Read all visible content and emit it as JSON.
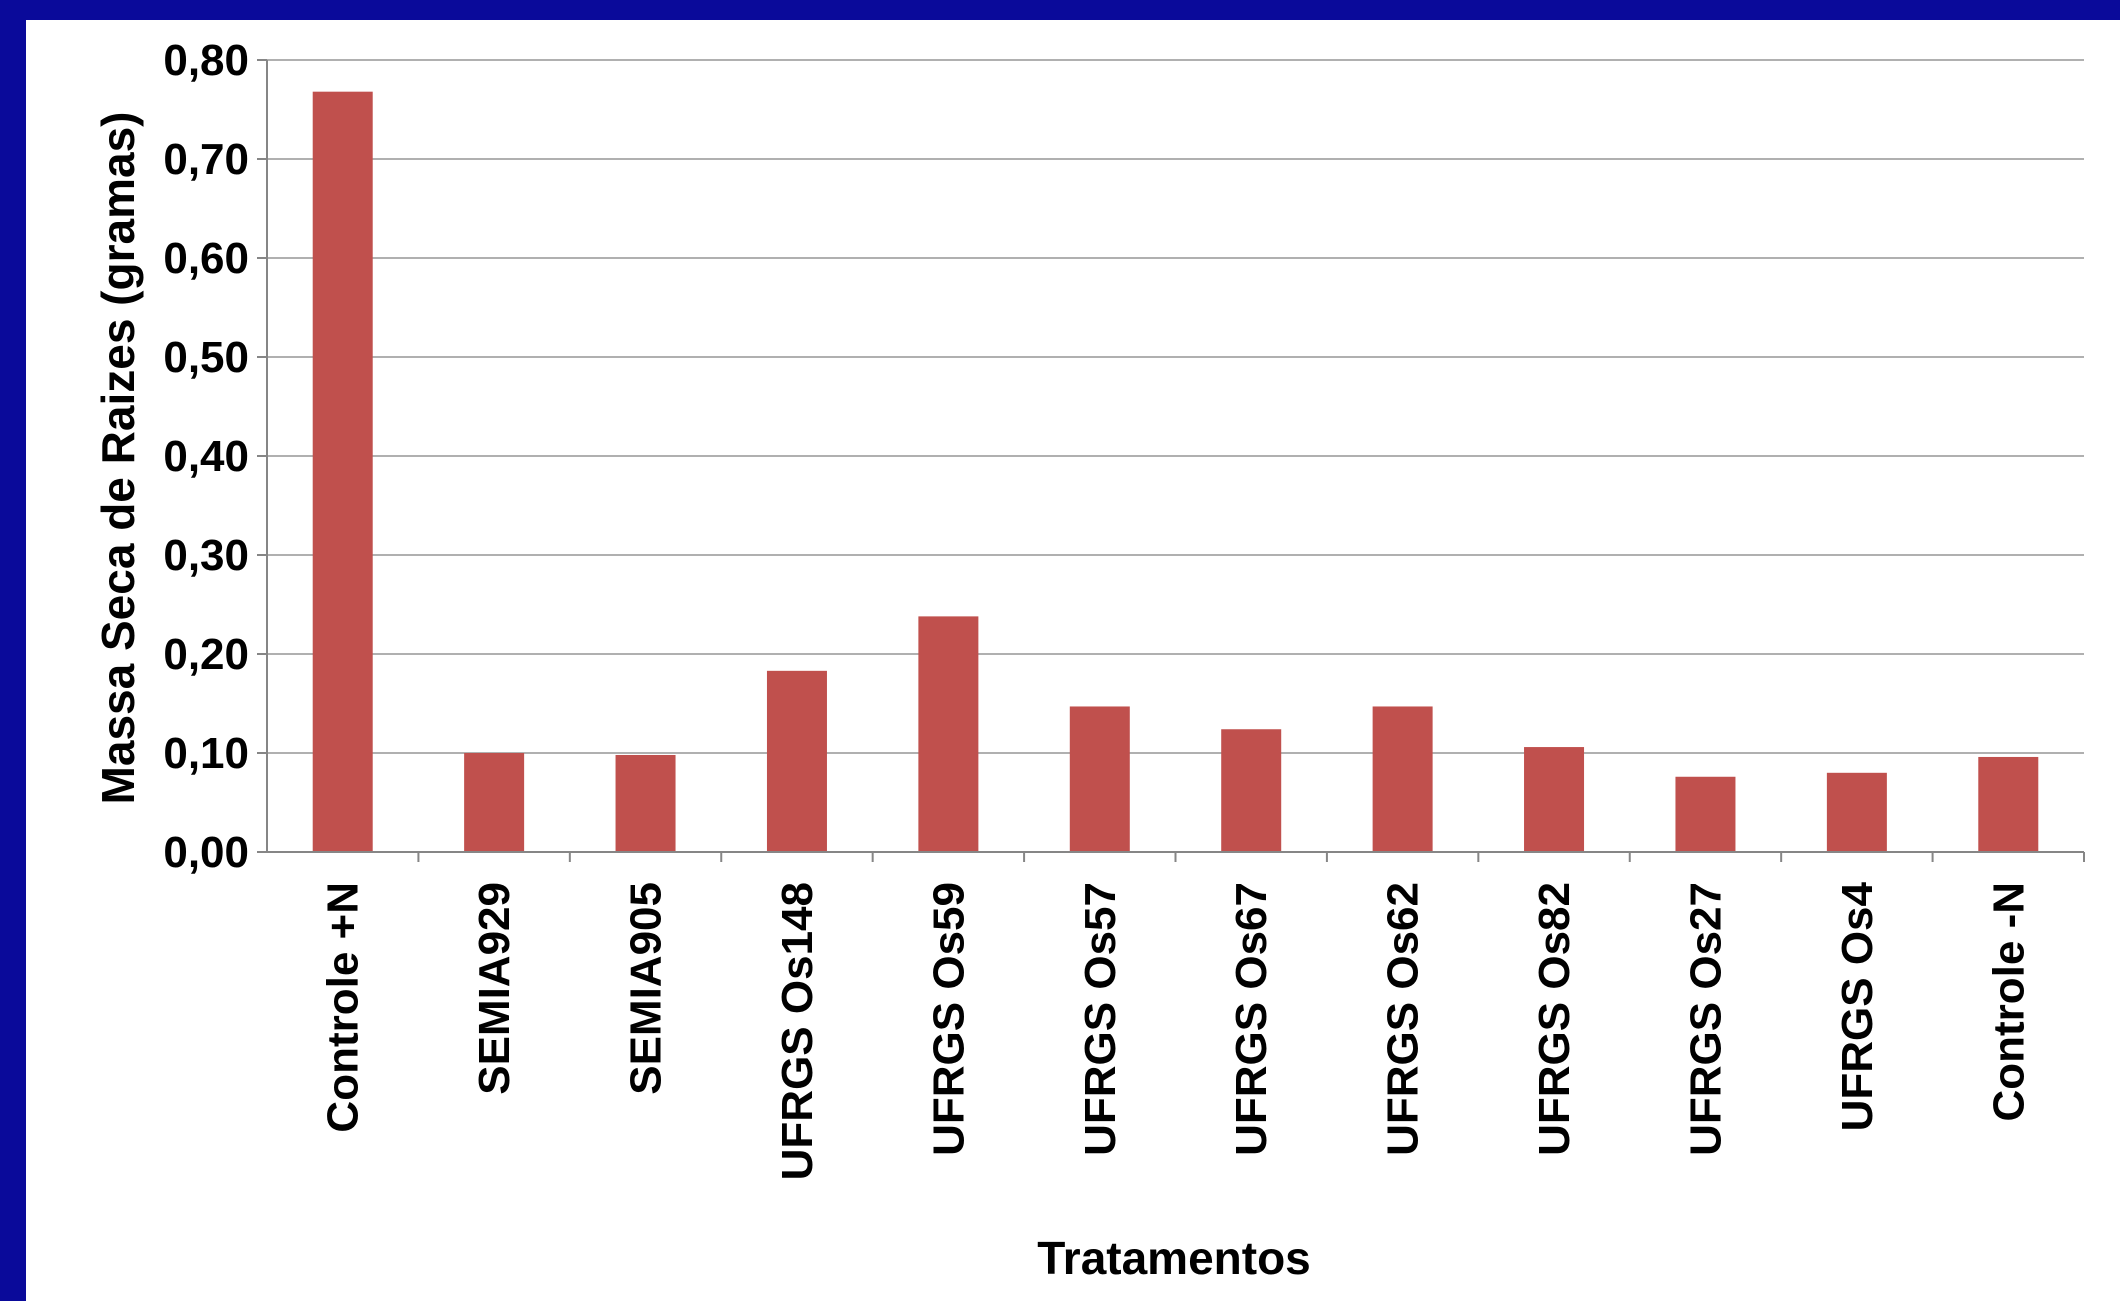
{
  "colors": {
    "background_border": "#0a0a9a",
    "panel": "#ffffff",
    "bar": "#c0504d",
    "grid": "#b0b0b0",
    "axis": "#868686"
  },
  "chart_data": {
    "type": "bar",
    "xlabel": "Tratamentos",
    "ylabel": "Massa Seca de Raizes (gramas)",
    "ylim": [
      0,
      0.8
    ],
    "yticks": [
      "0,00",
      "0,10",
      "0,20",
      "0,30",
      "0,40",
      "0,50",
      "0,60",
      "0,70",
      "0,80"
    ],
    "grid": true,
    "legend": "none",
    "categories": [
      "Controle +N",
      "SEMIA929",
      "SEMIA905",
      "UFRGS Os148",
      "UFRGS Os59",
      "UFRGS Os57",
      "UFRGS Os67",
      "UFRGS Os62",
      "UFRGS Os82",
      "UFRGS Os27",
      "UFRGS Os4",
      "Controle -N"
    ],
    "values": [
      0.768,
      0.1,
      0.098,
      0.183,
      0.238,
      0.147,
      0.124,
      0.147,
      0.106,
      0.076,
      0.08,
      0.096
    ]
  }
}
